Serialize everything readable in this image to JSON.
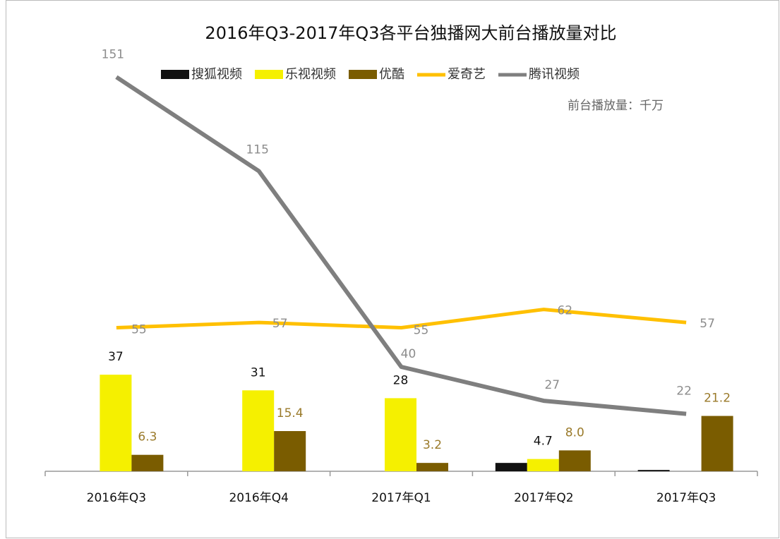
{
  "chart_data": {
    "type": "bar",
    "title": "2016年Q3-2017年Q3各平台独播网大前台播放量对比",
    "annotation": "前台播放量：千万",
    "categories": [
      "2016年Q3",
      "2016年Q4",
      "2017年Q1",
      "2017年Q2",
      "2017年Q3"
    ],
    "ylim": [
      0,
      160
    ],
    "series": [
      {
        "name": "搜狐视频",
        "type": "bar",
        "color": "#111111",
        "values": [
          null,
          null,
          null,
          3.2,
          0.5
        ],
        "show_labels": false
      },
      {
        "name": "乐视视频",
        "type": "bar",
        "color": "#f5f000",
        "values": [
          37,
          31,
          28,
          4.7,
          null
        ],
        "show_labels": true,
        "label_color": "#111111"
      },
      {
        "name": "优酷",
        "type": "bar",
        "color": "#7a5c00",
        "values": [
          6.3,
          15.4,
          3.2,
          8,
          21.2
        ],
        "value_labels": [
          "6.3",
          "15.4",
          "3.2",
          "8.0",
          "21.2"
        ],
        "show_labels": true,
        "label_color": "#9a7a2a"
      },
      {
        "name": "爱奇艺",
        "type": "line",
        "color": "#ffc000",
        "values": [
          55,
          57,
          55,
          62,
          57
        ],
        "show_labels": true,
        "label_color": "#8c8c8c"
      },
      {
        "name": "腾讯视频",
        "type": "line",
        "color": "#7f7f7f",
        "values": [
          151,
          115,
          40,
          27,
          22
        ],
        "show_labels": true,
        "label_color": "#8c8c8c"
      }
    ]
  }
}
